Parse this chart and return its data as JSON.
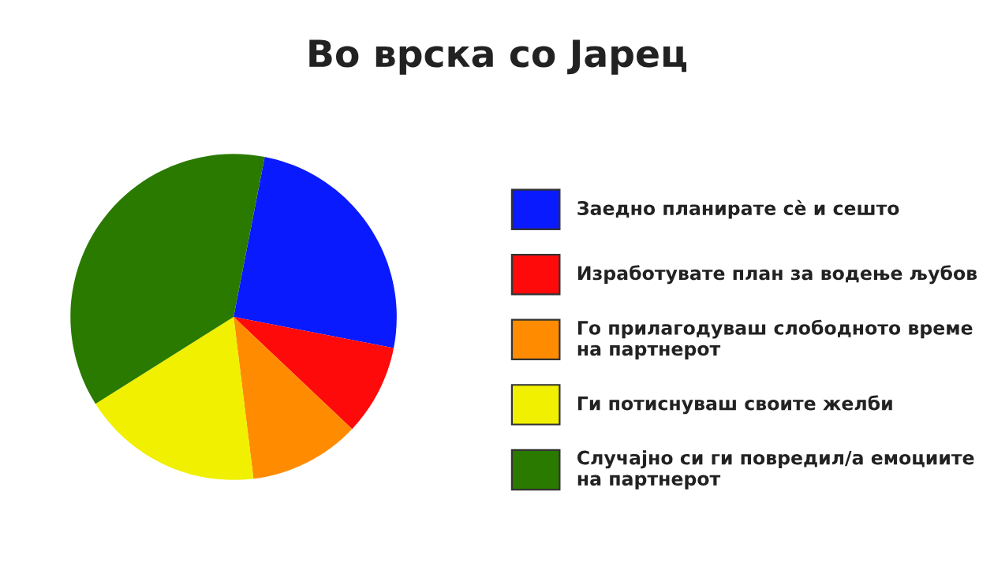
{
  "chart_data": {
    "type": "pie",
    "title": "Во врска со Јарец",
    "categories": [
      "Заедно планирате сè и сешто",
      "Изработувате план за водење љубов",
      "Го прилагодуваш слободното време на партнерот",
      "Ги потиснуваш своите желби",
      "Случајно си ги повредил/а емоциите на партнерот"
    ],
    "values": [
      25,
      9,
      11,
      18,
      37
    ],
    "colors": [
      "#0a1aff",
      "#ff0a0a",
      "#ff8c00",
      "#f0f000",
      "#2a7a00"
    ],
    "legend": "right"
  }
}
